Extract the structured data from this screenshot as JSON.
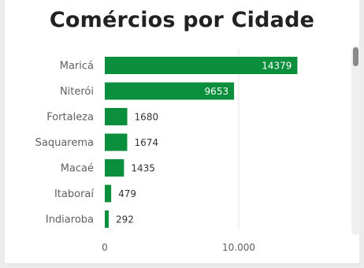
{
  "chart_data": {
    "type": "bar",
    "orientation": "horizontal",
    "title": "Comércios por Cidade",
    "categories": [
      "Maricá",
      "Niterói",
      "Fortaleza",
      "Saquarema",
      "Macaé",
      "Itaboraí",
      "Indiaroba"
    ],
    "values": [
      14379,
      9653,
      1680,
      1674,
      1435,
      479,
      292
    ],
    "xlim": [
      0,
      16000
    ],
    "xticks": [
      {
        "value": 0,
        "label": "0"
      },
      {
        "value": 10000,
        "label": "10.000"
      }
    ],
    "grid": true,
    "bar_color": "#0c8f3c"
  }
}
